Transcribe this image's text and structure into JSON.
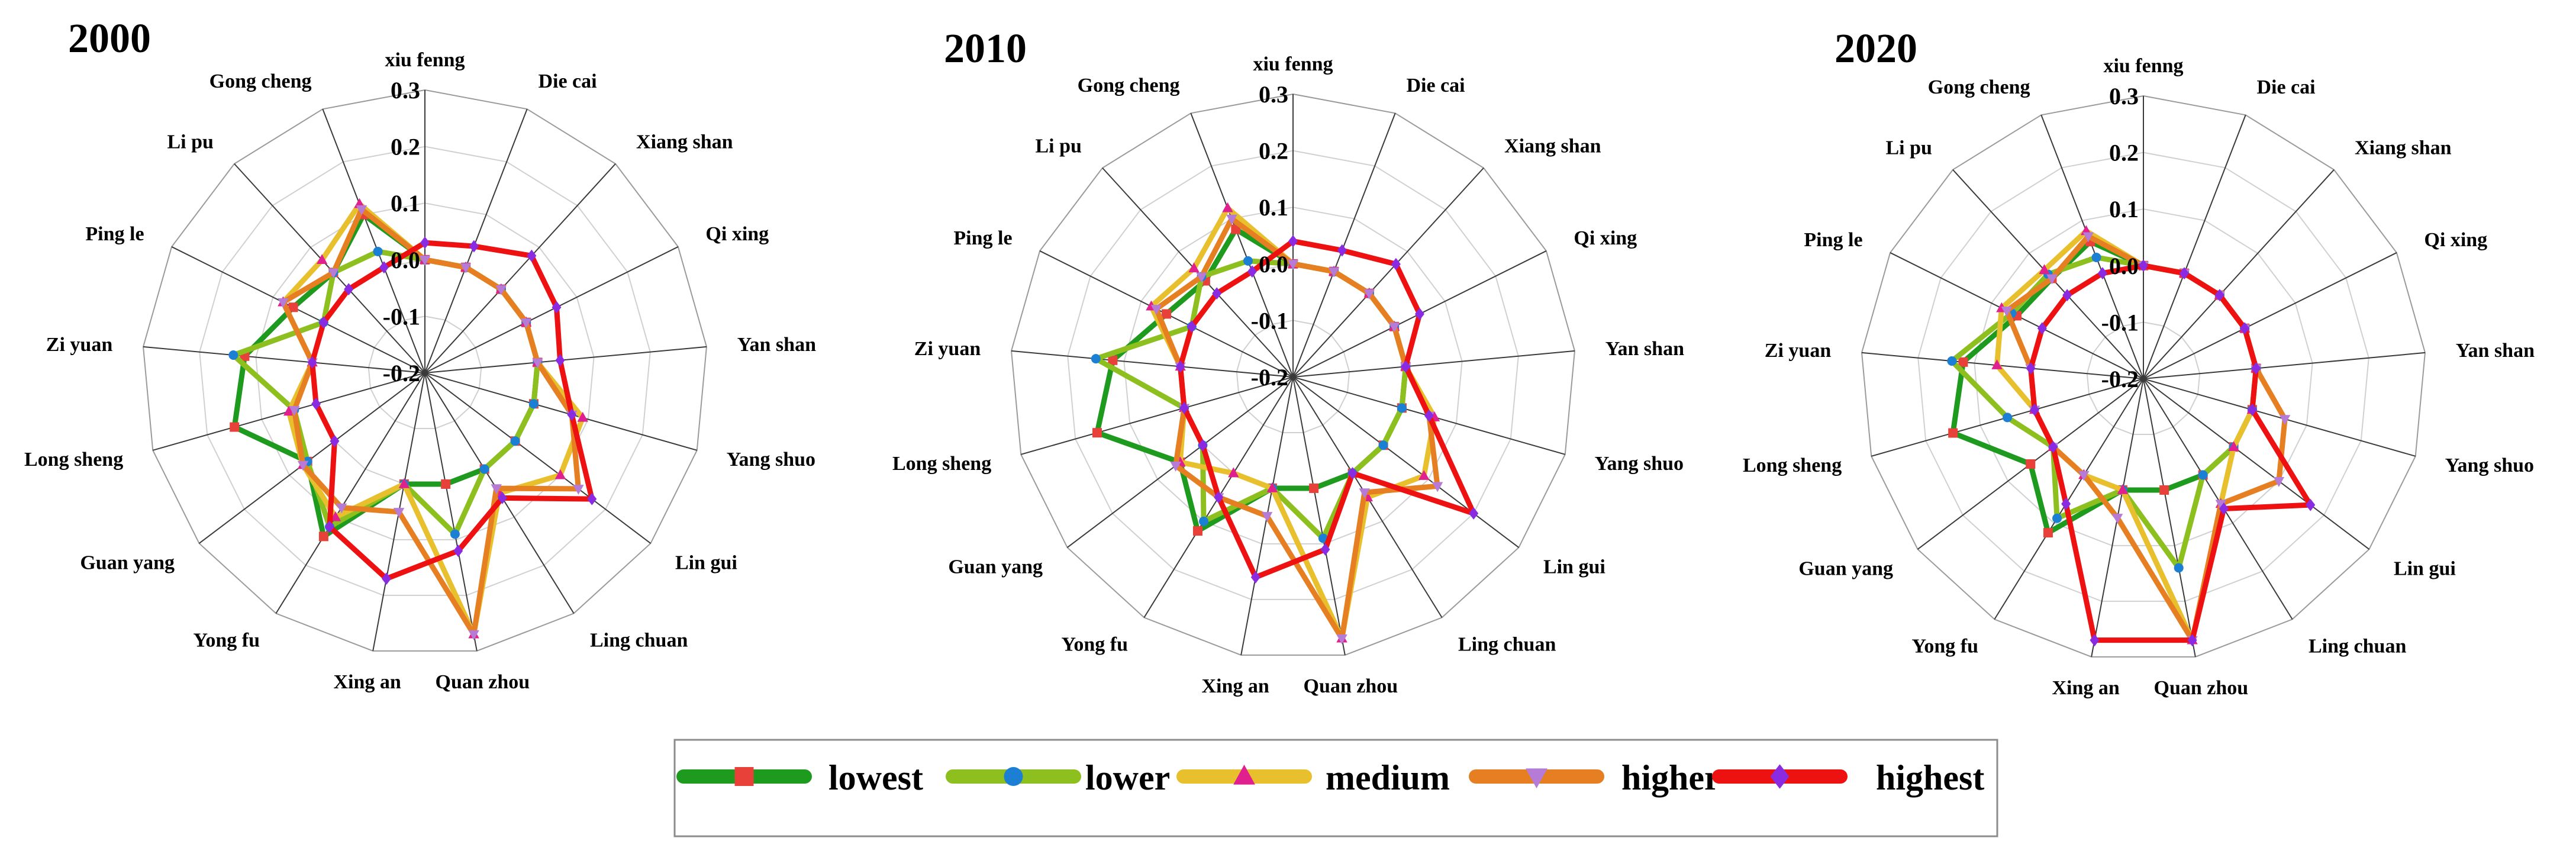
{
  "chart_data": {
    "type": "radar",
    "spokes": [
      "xiu fenng",
      "Die cai",
      "Xiang shan",
      "Qi xing",
      "Yan shan",
      "Yang shuo",
      "Lin gui",
      "Ling chuan",
      "Quan zhou",
      "Xing an",
      "Yong fu",
      "Guan yang",
      "Long sheng",
      "Zi yuan",
      "Ping le",
      "Li pu",
      "Gong cheng"
    ],
    "rlim": [
      -0.2,
      0.3
    ],
    "ticks": [
      "-0.2",
      "-0.1",
      "0.0",
      "0.1",
      "0.2",
      "0.3"
    ],
    "grid": true,
    "legend_position": "bottom",
    "legend": [
      {
        "label": "lowest",
        "color": "#1e9a1e",
        "marker_color": "#e8413a",
        "marker": "square"
      },
      {
        "label": "lower",
        "color": "#8dbf1f",
        "marker_color": "#1b7fd4",
        "marker": "circle"
      },
      {
        "label": "medium",
        "color": "#e8c02d",
        "marker_color": "#e0208f",
        "marker": "triangle-up"
      },
      {
        "label": "higher",
        "color": "#e67e22",
        "marker_color": "#b57bd6",
        "marker": "triangle-down"
      },
      {
        "label": "highest",
        "color": "#ee1111",
        "marker_color": "#8a2be2",
        "marker": "diamond"
      }
    ],
    "panels": [
      {
        "title": "2000",
        "series": [
          {
            "name": "lowest",
            "values": [
              0.0,
              0.0,
              0.0,
              0.0,
              0.0,
              0.0,
              0.0,
              0.0,
              0.0,
              0.0,
              0.14,
              0.06,
              0.15,
              0.12,
              0.06,
              0.04,
              0.1
            ]
          },
          {
            "name": "lower",
            "values": [
              0.0,
              0.0,
              0.0,
              0.0,
              0.0,
              0.0,
              0.0,
              0.0,
              0.09,
              0.0,
              0.12,
              0.06,
              0.04,
              0.14,
              0.0,
              0.04,
              0.03
            ]
          },
          {
            "name": "medium",
            "values": [
              0.0,
              0.0,
              0.0,
              0.0,
              0.0,
              0.09,
              0.1,
              0.05,
              0.27,
              0.0,
              0.1,
              0.07,
              0.05,
              0.0,
              0.08,
              0.07,
              0.12
            ]
          },
          {
            "name": "higher",
            "values": [
              0.0,
              0.0,
              0.0,
              0.0,
              0.0,
              0.07,
              0.14,
              0.04,
              0.27,
              0.05,
              0.08,
              0.07,
              0.04,
              0.0,
              0.08,
              0.04,
              0.11
            ]
          },
          {
            "name": "highest",
            "values": [
              0.03,
              0.04,
              0.08,
              0.06,
              0.04,
              0.07,
              0.17,
              0.06,
              0.12,
              0.17,
              0.12,
              0.0,
              0.0,
              0.0,
              0.0,
              0.0,
              0.0
            ]
          }
        ]
      },
      {
        "title": "2010",
        "series": [
          {
            "name": "lowest",
            "values": [
              0.0,
              0.0,
              0.0,
              0.0,
              0.0,
              0.0,
              0.0,
              0.0,
              0.0,
              0.0,
              0.12,
              0.05,
              0.16,
              0.12,
              0.05,
              0.03,
              0.08
            ]
          },
          {
            "name": "lower",
            "values": [
              0.0,
              0.0,
              0.0,
              0.0,
              0.0,
              0.0,
              0.0,
              0.0,
              0.09,
              0.0,
              0.1,
              0.0,
              0.0,
              0.15,
              0.0,
              0.04,
              0.02
            ]
          },
          {
            "name": "medium",
            "values": [
              0.0,
              0.0,
              0.0,
              0.0,
              0.0,
              0.06,
              0.09,
              0.05,
              0.27,
              0.0,
              0.0,
              0.05,
              0.0,
              0.0,
              0.08,
              0.06,
              0.12
            ]
          },
          {
            "name": "higher",
            "values": [
              0.0,
              0.0,
              0.0,
              0.0,
              0.0,
              0.05,
              0.12,
              0.04,
              0.27,
              0.05,
              0.05,
              0.06,
              0.0,
              0.0,
              0.07,
              0.04,
              0.1
            ]
          },
          {
            "name": "highest",
            "values": [
              0.04,
              0.04,
              0.07,
              0.05,
              0.0,
              0.05,
              0.2,
              0.0,
              0.11,
              0.16,
              0.05,
              0.0,
              0.0,
              0.0,
              0.0,
              0.0,
              0.0
            ]
          }
        ]
      },
      {
        "title": "2020",
        "series": [
          {
            "name": "lowest",
            "values": [
              0.0,
              0.0,
              0.0,
              0.0,
              0.0,
              0.0,
              0.0,
              0.0,
              0.0,
              0.0,
              0.12,
              0.05,
              0.15,
              0.12,
              0.05,
              0.04,
              0.06
            ]
          },
          {
            "name": "lower",
            "values": [
              0.0,
              0.0,
              0.0,
              0.0,
              0.0,
              0.0,
              0.0,
              0.0,
              0.14,
              0.0,
              0.09,
              0.0,
              0.05,
              0.14,
              0.06,
              0.05,
              0.03
            ]
          },
          {
            "name": "medium",
            "values": [
              0.0,
              0.0,
              0.0,
              0.0,
              0.0,
              0.0,
              0.0,
              0.06,
              0.27,
              0.0,
              0.0,
              0.0,
              0.0,
              0.06,
              0.08,
              0.06,
              0.08
            ]
          },
          {
            "name": "higher",
            "values": [
              0.0,
              0.0,
              0.0,
              0.0,
              0.0,
              0.06,
              0.1,
              0.06,
              0.27,
              0.05,
              0.0,
              0.0,
              0.0,
              0.0,
              0.07,
              0.04,
              0.07
            ]
          },
          {
            "name": "highest",
            "values": [
              0.0,
              0.0,
              0.0,
              0.0,
              0.0,
              0.0,
              0.17,
              0.07,
              0.27,
              0.27,
              0.06,
              0.0,
              0.0,
              0.0,
              0.0,
              0.0,
              0.0
            ]
          }
        ]
      }
    ]
  }
}
